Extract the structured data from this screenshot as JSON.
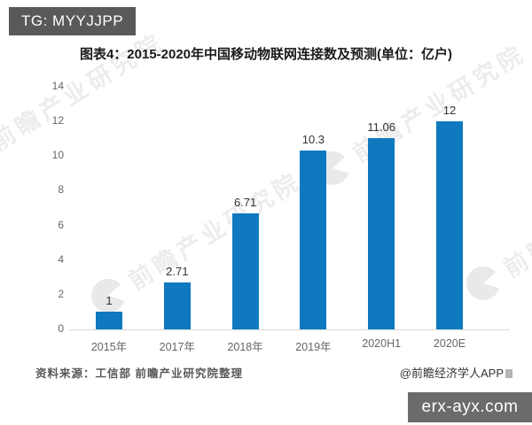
{
  "header": {
    "tag": "TG: MYYJJPP"
  },
  "title": "图表4：2015-2020年中国移动物联网连接数及预测(单位：亿户)",
  "chart_data": {
    "type": "bar",
    "title": "图表4：2015-2020年中国移动物联网连接数及预测(单位：亿户)",
    "categories": [
      "2015年",
      "2017年",
      "2018年",
      "2019年",
      "2020H1",
      "2020E"
    ],
    "values": [
      1,
      2.71,
      6.71,
      10.3,
      11.06,
      12
    ],
    "data_labels": [
      "1",
      "2.71",
      "6.71",
      "10.3",
      "11.06",
      "12"
    ],
    "xlabel": "",
    "ylabel": "",
    "ylim": [
      0,
      14
    ],
    "yticks": [
      0,
      2,
      4,
      6,
      8,
      10,
      12,
      14
    ],
    "grid": false,
    "legend": false,
    "bar_color": "#0e79be"
  },
  "watermark": {
    "text": "前瞻产业研究院",
    "logo": "pacman-circle-logo"
  },
  "footer": {
    "source": "资料来源：工信部 前瞻产业研究院整理",
    "credit": "@前瞻经济学人APP",
    "badge": "erx-ayx.com"
  },
  "colors": {
    "bar": "#0e79be",
    "header_chip_bg": "#595959",
    "badge_bg": "#6b6b6b",
    "axis_line": "#d9d9d9",
    "tick_text": "#666666",
    "title_text": "#1a1a1a"
  }
}
